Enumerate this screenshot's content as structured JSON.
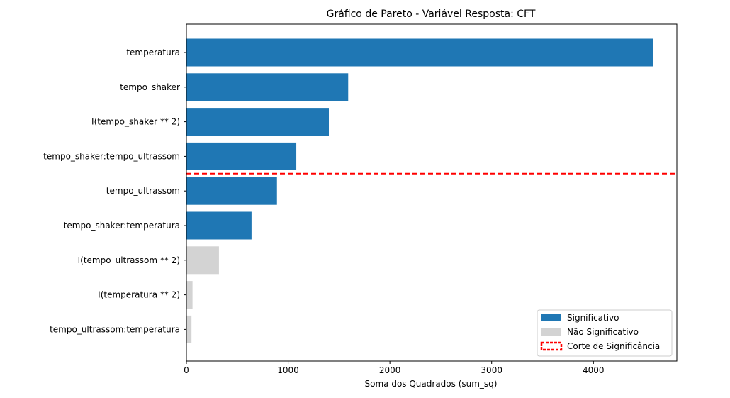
{
  "chart_data": {
    "type": "bar",
    "orientation": "horizontal",
    "title": "Gráfico de Pareto - Variável Resposta: CFT",
    "xlabel": "Soma dos Quadrados (sum_sq)",
    "ylabel": "",
    "xlim": [
      0,
      4820
    ],
    "xticks": [
      0,
      1000,
      2000,
      3000,
      4000
    ],
    "xtick_labels": [
      "0",
      "1000",
      "2000",
      "3000",
      "4000"
    ],
    "grid": false,
    "legend_placement": "lower-right",
    "colors": {
      "significant": "#1f77b4",
      "not_significant": "#d3d3d3",
      "cutoff": "#ff0000"
    },
    "categories": [
      "temperatura",
      "tempo_shaker",
      "I(tempo_shaker ** 2)",
      "tempo_shaker:tempo_ultrassom",
      "tempo_ultrassom",
      "tempo_shaker:temperatura",
      "I(tempo_ultrassom ** 2)",
      "I(temperatura ** 2)",
      "tempo_ultrassom:temperatura"
    ],
    "values": [
      4590,
      1590,
      1400,
      1080,
      890,
      640,
      320,
      60,
      50
    ],
    "significant": [
      true,
      true,
      true,
      true,
      true,
      true,
      false,
      false,
      false
    ],
    "cutoff_between": [
      3,
      4
    ],
    "legend": [
      {
        "label": "Significativo",
        "type": "significant"
      },
      {
        "label": "Não Significativo",
        "type": "not_significant"
      },
      {
        "label": "Corte de Significância",
        "type": "cutoff"
      }
    ]
  }
}
